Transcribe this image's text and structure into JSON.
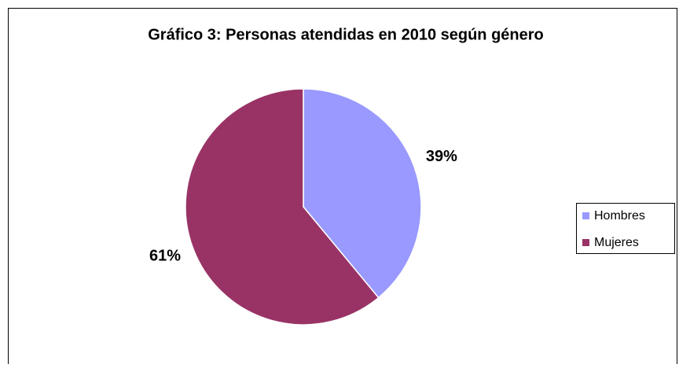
{
  "chart_data": {
    "type": "pie",
    "title": "Gráfico 3: Personas atendidas en 2010 según género",
    "categories": [
      "Hombres",
      "Mujeres"
    ],
    "values": [
      39,
      61
    ],
    "value_labels": [
      "39%",
      "61%"
    ],
    "colors": [
      "#9999ff",
      "#993366"
    ],
    "legend": "right"
  }
}
